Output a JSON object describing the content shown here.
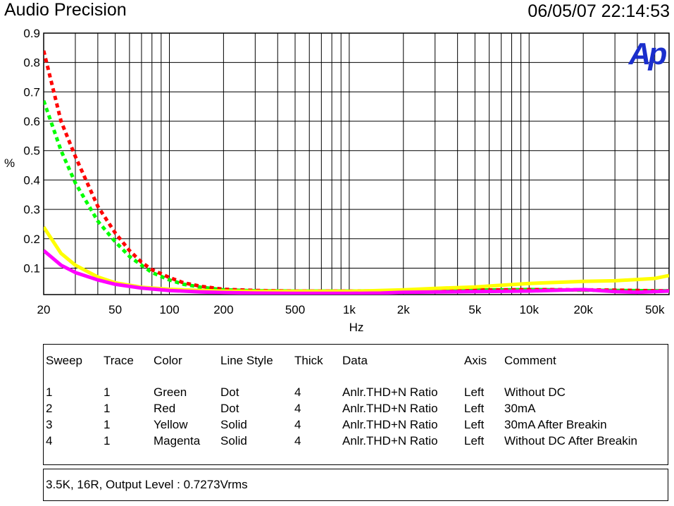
{
  "header": {
    "app_title": "Audio Precision",
    "timestamp": "06/05/07 22:14:53",
    "logo_text": "Ap"
  },
  "chart_data": {
    "type": "line",
    "title": "",
    "xlabel": "Hz",
    "ylabel": "%",
    "xscale": "log",
    "xlim": [
      20,
      60000
    ],
    "ylim": [
      0.01,
      0.9
    ],
    "grid": true,
    "x_tick_labels": [
      {
        "value": 20,
        "label": "20"
      },
      {
        "value": 50,
        "label": "50"
      },
      {
        "value": 100,
        "label": "100"
      },
      {
        "value": 200,
        "label": "200"
      },
      {
        "value": 500,
        "label": "500"
      },
      {
        "value": 1000,
        "label": "1k"
      },
      {
        "value": 2000,
        "label": "2k"
      },
      {
        "value": 5000,
        "label": "5k"
      },
      {
        "value": 10000,
        "label": "10k"
      },
      {
        "value": 20000,
        "label": "20k"
      },
      {
        "value": 50000,
        "label": "50k"
      }
    ],
    "y_ticks": [
      0.1,
      0.2,
      0.3,
      0.4,
      0.5,
      0.6,
      0.7,
      0.8,
      0.9
    ],
    "series": [
      {
        "sweep": 1,
        "color": "#00ff00",
        "style": "dot",
        "x": [
          20,
          25,
          30,
          40,
          50,
          60,
          70,
          80,
          100,
          120,
          150,
          200,
          300,
          500,
          1000,
          2000,
          5000,
          10000,
          20000,
          30000,
          50000,
          60000
        ],
        "y": [
          0.67,
          0.5,
          0.39,
          0.26,
          0.19,
          0.14,
          0.11,
          0.085,
          0.06,
          0.045,
          0.035,
          0.026,
          0.023,
          0.022,
          0.022,
          0.023,
          0.025,
          0.027,
          0.025,
          0.024,
          0.023,
          0.023
        ]
      },
      {
        "sweep": 2,
        "color": "#ff0000",
        "style": "dot",
        "x": [
          20,
          25,
          30,
          40,
          50,
          60,
          70,
          80,
          100,
          120,
          150,
          200,
          300,
          500,
          1000,
          2000,
          5000,
          10000,
          20000,
          30000,
          50000,
          60000
        ],
        "y": [
          0.84,
          0.6,
          0.48,
          0.31,
          0.22,
          0.16,
          0.12,
          0.095,
          0.068,
          0.05,
          0.038,
          0.028,
          0.024,
          0.022,
          0.022,
          0.023,
          0.025,
          0.027,
          0.026,
          0.025,
          0.023,
          0.023
        ]
      },
      {
        "sweep": 3,
        "color": "#ffff00",
        "style": "solid",
        "x": [
          20,
          25,
          30,
          40,
          50,
          70,
          100,
          150,
          200,
          300,
          500,
          1000,
          2000,
          3000,
          5000,
          7000,
          10000,
          15000,
          20000,
          30000,
          50000,
          60000
        ],
        "y": [
          0.24,
          0.15,
          0.11,
          0.07,
          0.05,
          0.035,
          0.028,
          0.024,
          0.022,
          0.021,
          0.021,
          0.021,
          0.026,
          0.031,
          0.036,
          0.042,
          0.048,
          0.052,
          0.055,
          0.057,
          0.065,
          0.075
        ]
      },
      {
        "sweep": 4,
        "color": "#ff00ff",
        "style": "solid",
        "x": [
          20,
          25,
          30,
          40,
          50,
          70,
          100,
          150,
          200,
          300,
          500,
          1000,
          1500,
          2000,
          3000,
          5000,
          10000,
          15000,
          20000,
          30000,
          40000,
          50000,
          60000
        ],
        "y": [
          0.16,
          0.11,
          0.085,
          0.06,
          0.045,
          0.032,
          0.024,
          0.019,
          0.017,
          0.015,
          0.014,
          0.014,
          0.015,
          0.018,
          0.019,
          0.02,
          0.022,
          0.025,
          0.027,
          0.02,
          0.018,
          0.02,
          0.022
        ]
      }
    ]
  },
  "legend": {
    "headers": {
      "sweep": "Sweep",
      "trace": "Trace",
      "color": "Color",
      "line_style": "Line Style",
      "thick": "Thick",
      "data": "Data",
      "axis": "Axis",
      "comment": "Comment"
    },
    "rows": [
      {
        "sweep": "1",
        "trace": "1",
        "color": "Green",
        "line_style": "Dot",
        "thick": "4",
        "data": "Anlr.THD+N Ratio",
        "axis": "Left",
        "comment": "Without DC"
      },
      {
        "sweep": "2",
        "trace": "1",
        "color": "Red",
        "line_style": "Dot",
        "thick": "4",
        "data": "Anlr.THD+N Ratio",
        "axis": "Left",
        "comment": "30mA"
      },
      {
        "sweep": "3",
        "trace": "1",
        "color": "Yellow",
        "line_style": "Solid",
        "thick": "4",
        "data": "Anlr.THD+N Ratio",
        "axis": "Left",
        "comment": "30mA After Breakin"
      },
      {
        "sweep": "4",
        "trace": "1",
        "color": "Magenta",
        "line_style": "Solid",
        "thick": "4",
        "data": "Anlr.THD+N Ratio",
        "axis": "Left",
        "comment": "Without DC After Breakin"
      }
    ]
  },
  "note": {
    "text": "3.5K, 16R, Output Level : 0.7273Vrms"
  }
}
